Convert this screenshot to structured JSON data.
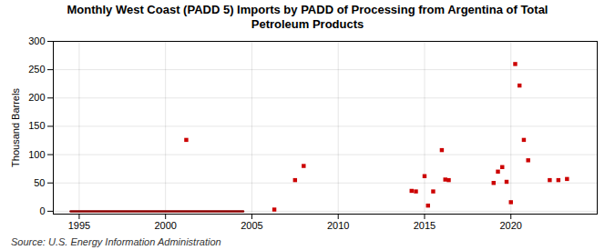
{
  "chart_data": {
    "type": "scatter",
    "title": "Monthly West Coast (PADD 5) Imports by PADD of Processing from Argentina of Total\nPetroleum Products",
    "ylabel": "Thousand Barrels",
    "source": "Source: U.S. Energy Information Administration",
    "xlim": [
      1993.5,
      2025
    ],
    "ylim": [
      -5,
      300
    ],
    "xticks": [
      1995,
      2000,
      2005,
      2010,
      2015,
      2020
    ],
    "yticks": [
      0,
      50,
      100,
      150,
      200,
      250,
      300
    ],
    "grid": true,
    "series": [
      {
        "type": "line",
        "color": "#8b0000",
        "x": [
          1994.5,
          2004.5
        ],
        "values": [
          0,
          0
        ]
      },
      {
        "type": "scatter",
        "color": "#cc0000",
        "marker": "square",
        "x": [
          2001.2,
          2006.3,
          2007.5,
          2008.0,
          2014.25,
          2014.5,
          2015.0,
          2015.2,
          2015.5,
          2016.0,
          2016.2,
          2016.4,
          2019.0,
          2019.25,
          2019.5,
          2019.75,
          2020.0,
          2020.25,
          2020.5,
          2020.75,
          2021.0,
          2022.25,
          2022.75,
          2023.25
        ],
        "values": [
          126,
          3,
          55,
          80,
          36,
          35,
          62,
          10,
          35,
          108,
          56,
          55,
          50,
          70,
          78,
          52,
          16,
          260,
          222,
          126,
          90,
          55,
          55,
          57
        ]
      }
    ]
  }
}
